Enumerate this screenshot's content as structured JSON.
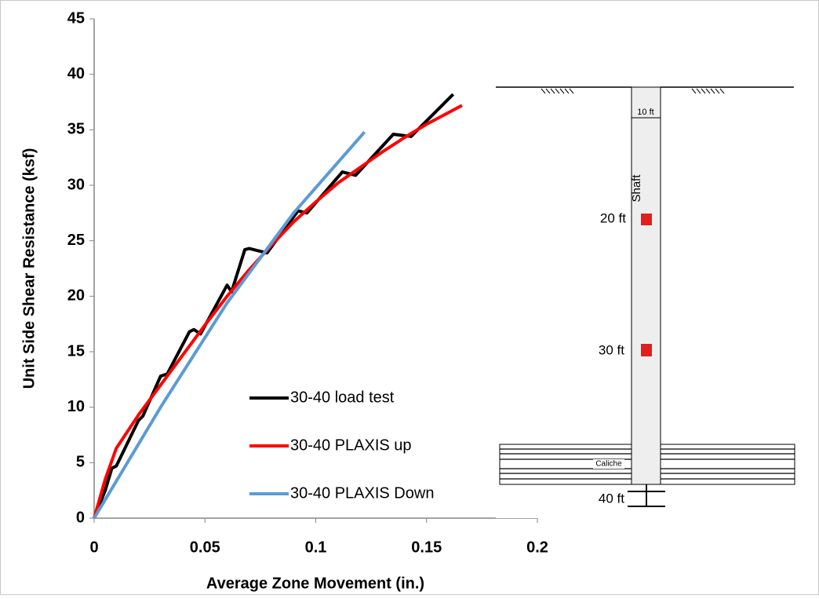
{
  "chart_data": {
    "type": "line",
    "xlabel": "Average Zone Movement (in.)",
    "ylabel": "Unit Side Shear Resistance (ksf)",
    "xlim": [
      0,
      0.2
    ],
    "xticks": [
      0,
      0.05,
      0.1,
      0.15,
      0.2
    ],
    "ylim": [
      0,
      45
    ],
    "yticks": [
      0,
      5,
      10,
      15,
      20,
      25,
      30,
      35,
      40,
      45
    ],
    "grid": false,
    "series": [
      {
        "name": "30-40 load test",
        "color": "#000000",
        "x": [
          0,
          0.005,
          0.008,
          0.01,
          0.02,
          0.022,
          0.03,
          0.033,
          0.043,
          0.045,
          0.048,
          0.06,
          0.062,
          0.068,
          0.07,
          0.078,
          0.092,
          0.096,
          0.112,
          0.118,
          0.135,
          0.143,
          0.162
        ],
        "values": [
          0,
          2.5,
          4.5,
          4.7,
          8.8,
          9.2,
          12.8,
          13,
          16.8,
          17,
          16.6,
          21,
          20.4,
          24.2,
          24.3,
          23.9,
          27.7,
          27.5,
          31.2,
          30.9,
          34.6,
          34.4,
          38.2
        ]
      },
      {
        "name": "30-40 PLAXIS up",
        "color": "#ff0000",
        "x": [
          0,
          0.005,
          0.01,
          0.02,
          0.03,
          0.04,
          0.05,
          0.06,
          0.07,
          0.08,
          0.09,
          0.1,
          0.11,
          0.12,
          0.13,
          0.14,
          0.15,
          0.166
        ],
        "values": [
          0,
          3.5,
          6.3,
          9.3,
          12,
          14.7,
          17.4,
          20,
          22.4,
          24.6,
          26.7,
          28.5,
          30.2,
          31.6,
          33,
          34.3,
          35.5,
          37.2
        ]
      },
      {
        "name": "30-40 PLAXIS Down",
        "color": "#5b9bd5",
        "x": [
          0,
          0.03,
          0.06,
          0.09,
          0.122
        ],
        "values": [
          0,
          10,
          19.4,
          27.5,
          34.8
        ]
      }
    ],
    "annotations": [
      "10 ft",
      "Shaft",
      "20 ft",
      "30 ft",
      "Caliche",
      "40 ft"
    ]
  }
}
